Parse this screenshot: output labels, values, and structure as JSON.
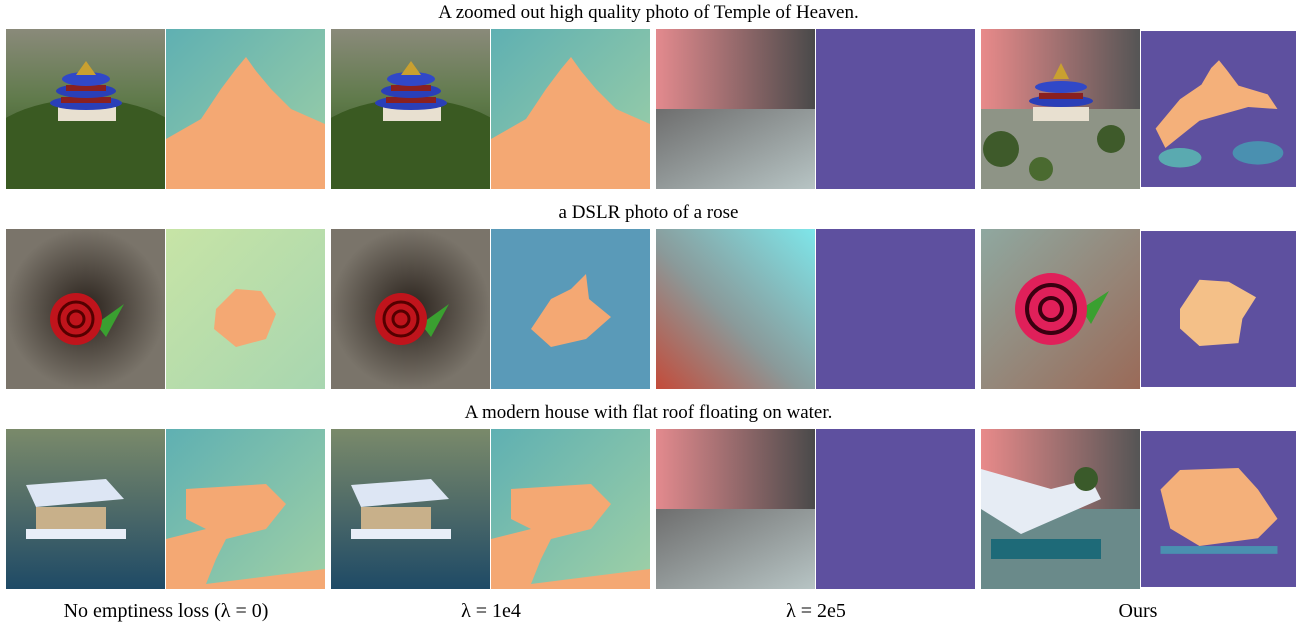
{
  "rows": [
    {
      "caption": "A zoomed out high quality photo of Temple of Heaven."
    },
    {
      "caption": "a DSLR photo of a rose"
    },
    {
      "caption": "A modern house with flat roof floating on water."
    }
  ],
  "columns": [
    "No emptiness loss (λ = 0)",
    "λ = 1e4",
    "λ = 2e5",
    "Ours"
  ]
}
